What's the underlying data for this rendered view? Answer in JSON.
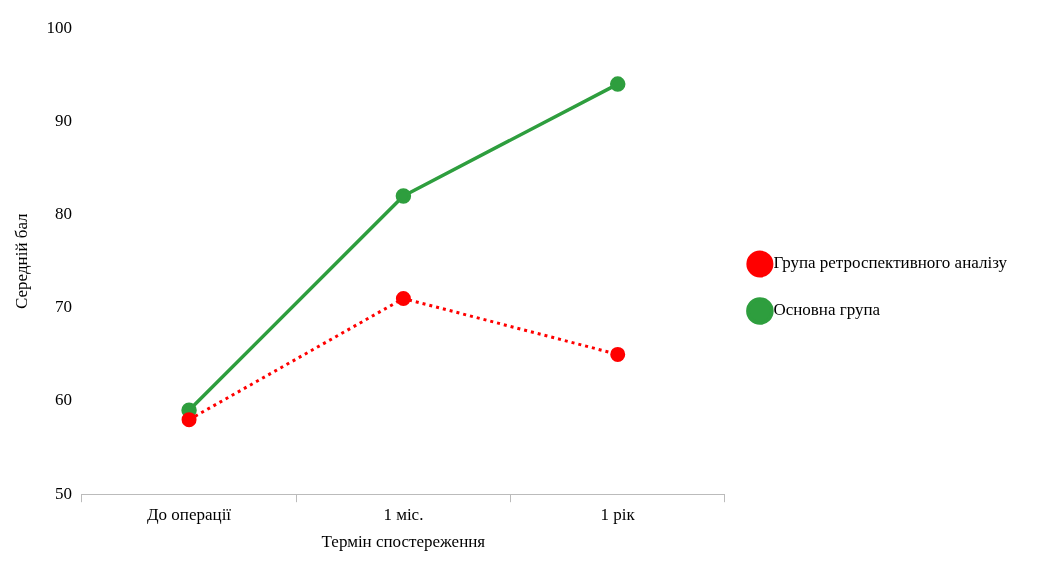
{
  "chart_data": {
    "type": "line",
    "xlabel": "Термін спостереження",
    "ylabel": "Середній бал",
    "categories": [
      "До операції",
      "1 міс.",
      "1 рік"
    ],
    "series": [
      {
        "name": "Група ретроспективного аналізу",
        "color": "#ff0000",
        "values": [
          58,
          71,
          65
        ],
        "line_style": "dotted"
      },
      {
        "name": "Основна група",
        "color": "#2e9e3e",
        "values": [
          59,
          82,
          94
        ],
        "line_style": "solid"
      }
    ],
    "ylim": [
      50,
      100
    ],
    "yticks": [
      50,
      60,
      70,
      80,
      90,
      100
    ],
    "grid": false,
    "legend": "right",
    "marker": "circle"
  }
}
